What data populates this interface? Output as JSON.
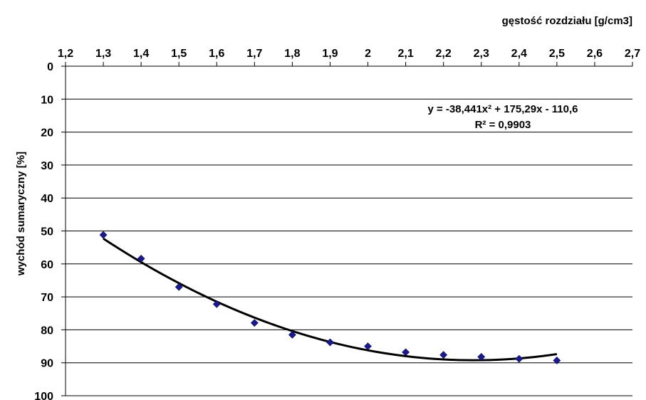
{
  "chart_data": {
    "type": "scatter",
    "xlabel": "gęstość rozdziału [g/cm3]",
    "ylabel": "wychód sumaryczny [%]",
    "xlim": [
      1.2,
      2.7
    ],
    "ylim": [
      0,
      100
    ],
    "y_reversed": true,
    "x_axis_position": "top",
    "x_ticks": [
      "1,2",
      "1,3",
      "1,4",
      "1,5",
      "1,6",
      "1,7",
      "1,8",
      "1,9",
      "2",
      "2,1",
      "2,2",
      "2,3",
      "2,4",
      "2,5",
      "2,6",
      "2,7"
    ],
    "y_ticks": [
      "0",
      "10",
      "20",
      "30",
      "40",
      "50",
      "60",
      "70",
      "80",
      "90",
      "100"
    ],
    "grid": "horizontal",
    "marker_color": "#1a1a8c",
    "trendline_color": "#000000",
    "series": [
      {
        "x": [
          1.3,
          1.4,
          1.5,
          1.6,
          1.7,
          1.8,
          1.9,
          2.0,
          2.1,
          2.2,
          2.3,
          2.4,
          2.5
        ],
        "y": [
          51.2,
          58.4,
          67.0,
          72.2,
          77.9,
          81.5,
          83.8,
          85.0,
          86.8,
          87.6,
          88.2,
          88.8,
          89.3
        ]
      }
    ],
    "trendline": {
      "type": "polynomial",
      "coefficients": [
        -38.441,
        175.29,
        -110.6
      ],
      "x_range": [
        1.3,
        2.5
      ]
    },
    "annotations": {
      "equation": "y = -38,441x² + 175,29x - 110,6",
      "r_squared": "R² = 0,9903"
    }
  }
}
